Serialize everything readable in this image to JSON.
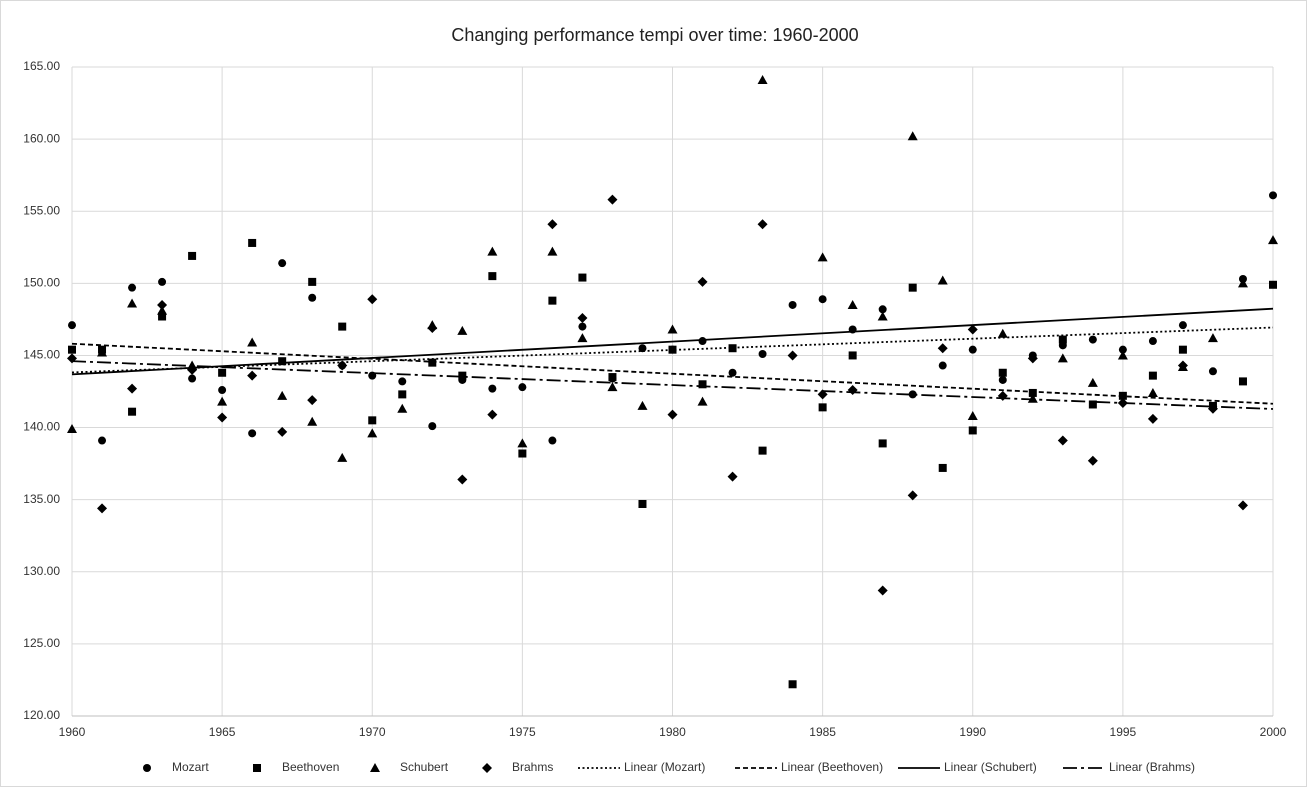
{
  "chart_data": {
    "type": "scatter",
    "title": "Changing performance tempi over time: 1960-2000",
    "x": [
      1960,
      1961,
      1962,
      1963,
      1964,
      1965,
      1966,
      1967,
      1968,
      1969,
      1970,
      1971,
      1972,
      1973,
      1974,
      1975,
      1976,
      1977,
      1978,
      1979,
      1980,
      1981,
      1982,
      1983,
      1984,
      1985,
      1986,
      1987,
      1988,
      1989,
      1990,
      1991,
      1992,
      1993,
      1994,
      1995,
      1996,
      1997,
      1998,
      1999,
      2000
    ],
    "xlim": [
      1960,
      2000
    ],
    "xticks": [
      1960,
      1965,
      1970,
      1975,
      1980,
      1985,
      1990,
      1995,
      2000
    ],
    "ylim": [
      120,
      165
    ],
    "yticks": [
      {
        "value": 120,
        "label": "120.00"
      },
      {
        "value": 125,
        "label": "125.00"
      },
      {
        "value": 130,
        "label": "130.00"
      },
      {
        "value": 135,
        "label": "135.00"
      },
      {
        "value": 140,
        "label": "140.00"
      },
      {
        "value": 145,
        "label": "145.00"
      },
      {
        "value": 150,
        "label": "150.00"
      },
      {
        "value": 155,
        "label": "155.00"
      },
      {
        "value": 160,
        "label": "160.00"
      },
      {
        "value": 165,
        "label": "165.00"
      }
    ],
    "grid": true,
    "legend": "bottom",
    "series": [
      {
        "name": "Mozart",
        "marker": "circle",
        "color": "#000000",
        "trendline": {
          "name": "Linear (Mozart)",
          "style": "dotted"
        },
        "values": [
          147.1,
          139.1,
          149.7,
          150.1,
          143.4,
          142.6,
          139.6,
          151.4,
          149.0,
          144.3,
          143.6,
          143.2,
          140.1,
          143.3,
          142.7,
          142.8,
          139.1,
          147.0,
          143.4,
          145.5,
          145.4,
          146.0,
          143.8,
          145.1,
          148.5,
          148.9,
          146.8,
          148.2,
          142.3,
          144.3,
          145.4,
          143.3,
          145.0,
          145.7,
          146.1,
          145.4,
          146.0,
          147.1,
          143.9,
          150.3,
          156.1
        ]
      },
      {
        "name": "Beethoven",
        "marker": "square",
        "color": "#000000",
        "trendline": {
          "name": "Linear (Beethoven)",
          "style": "dashed"
        },
        "values": [
          145.4,
          145.4,
          141.1,
          147.7,
          151.9,
          143.8,
          152.8,
          144.6,
          150.1,
          147.0,
          140.5,
          142.3,
          144.5,
          143.6,
          150.5,
          138.2,
          148.8,
          150.4,
          143.5,
          134.7,
          145.4,
          143.0,
          145.5,
          138.4,
          122.2,
          141.4,
          145.0,
          138.9,
          149.7,
          137.2,
          139.8,
          143.8,
          142.4,
          146.1,
          141.6,
          142.2,
          143.6,
          145.4,
          141.5,
          143.2,
          149.9
        ]
      },
      {
        "name": "Schubert",
        "marker": "triangle",
        "color": "#000000",
        "trendline": {
          "name": "Linear (Schubert)",
          "style": "solid"
        },
        "values": [
          139.9,
          145.2,
          148.6,
          148.1,
          144.3,
          141.8,
          145.9,
          142.2,
          140.4,
          137.9,
          139.6,
          141.3,
          147.1,
          146.7,
          152.2,
          138.9,
          152.2,
          146.2,
          142.8,
          141.5,
          146.8,
          141.8,
          null,
          164.1,
          null,
          151.8,
          148.5,
          147.7,
          160.2,
          150.2,
          140.8,
          146.5,
          142.0,
          144.8,
          143.1,
          145.0,
          142.4,
          144.2,
          146.2,
          150.0,
          153.0
        ]
      },
      {
        "name": "Brahms",
        "marker": "diamond",
        "color": "#000000",
        "trendline": {
          "name": "Linear (Brahms)",
          "style": "dashdot"
        },
        "values": [
          144.8,
          134.4,
          142.7,
          148.5,
          144.0,
          140.7,
          143.6,
          139.7,
          141.9,
          144.3,
          148.9,
          null,
          146.9,
          136.4,
          140.9,
          null,
          154.1,
          147.6,
          155.8,
          null,
          140.9,
          150.1,
          136.6,
          154.1,
          145.0,
          142.3,
          142.6,
          128.7,
          135.3,
          145.5,
          146.8,
          142.2,
          144.8,
          139.1,
          137.7,
          141.7,
          140.6,
          144.3,
          141.3,
          134.6,
          null
        ]
      }
    ]
  }
}
